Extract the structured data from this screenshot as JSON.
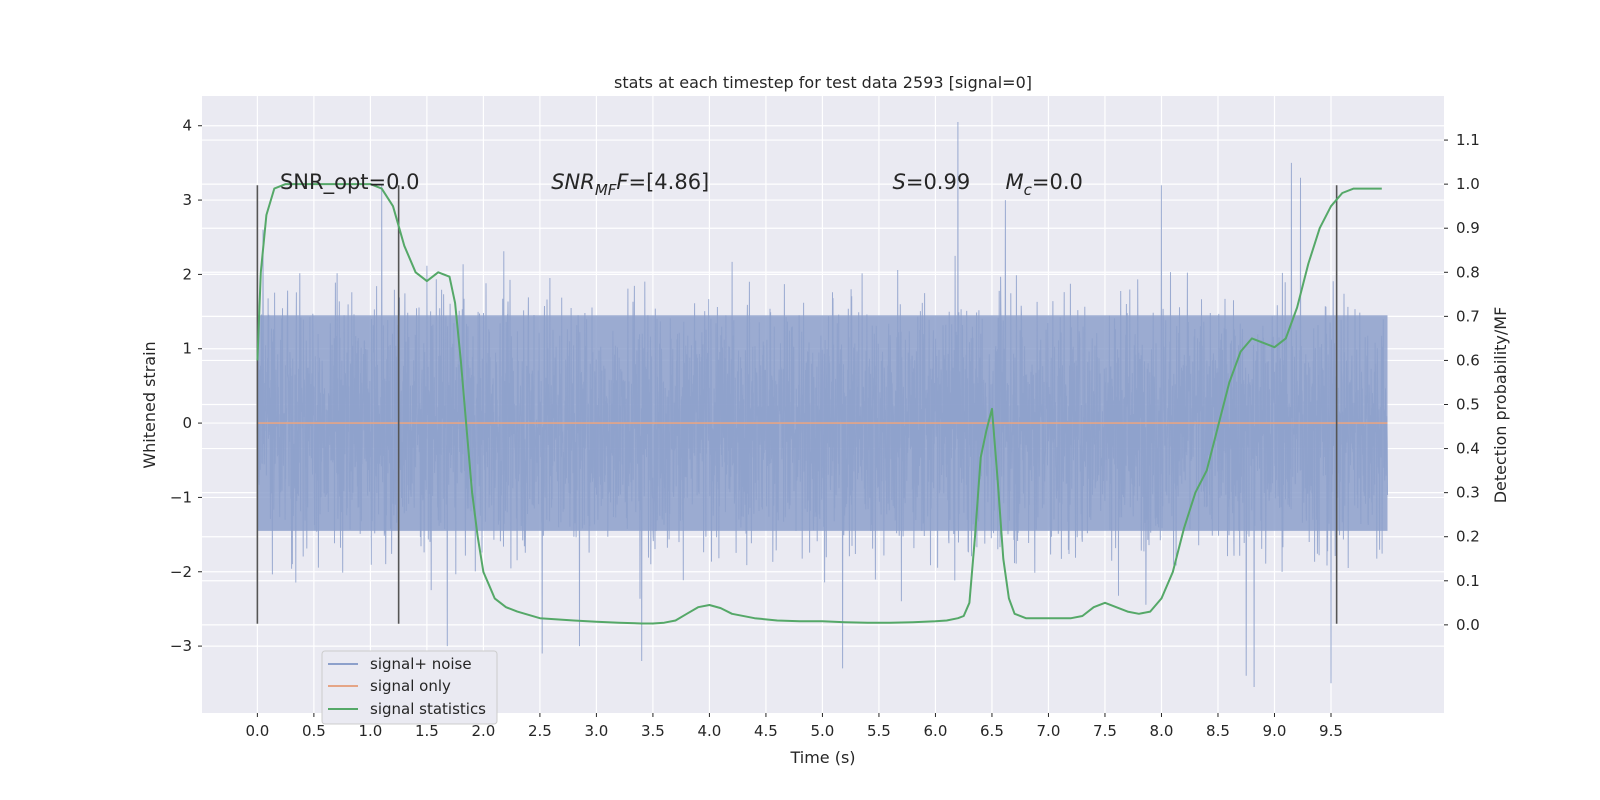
{
  "chart_data": {
    "type": "line",
    "title": "stats at each timestep for test data 2593 [signal=0]",
    "xlabel": "Time (s)",
    "ylabel_left": "Whitened strain",
    "ylabel_right": "Detection probability/MF",
    "xlim": [
      -0.49,
      10.5
    ],
    "ylim_left": [
      -3.9,
      4.4
    ],
    "ylim_right": [
      -0.2,
      1.2
    ],
    "x_ticks": [
      0.0,
      0.5,
      1.0,
      1.5,
      2.0,
      2.5,
      3.0,
      3.5,
      4.0,
      4.5,
      5.0,
      5.5,
      6.0,
      6.5,
      7.0,
      7.5,
      8.0,
      8.5,
      9.0,
      9.5
    ],
    "x_tick_labels": [
      "0.0",
      "0.5",
      "1.0",
      "1.5",
      "2.0",
      "2.5",
      "3.0",
      "3.5",
      "4.0",
      "4.5",
      "5.0",
      "5.5",
      "6.0",
      "6.5",
      "7.0",
      "7.5",
      "8.0",
      "8.5",
      "9.0",
      "9.5"
    ],
    "y_left_ticks": [
      -3,
      -2,
      -1,
      0,
      1,
      2,
      3,
      4
    ],
    "y_left_tick_labels": [
      "−3",
      "−2",
      "−1",
      "0",
      "1",
      "2",
      "3",
      "4"
    ],
    "y_right_ticks": [
      0.0,
      0.1,
      0.2,
      0.3,
      0.4,
      0.5,
      0.6,
      0.7,
      0.8,
      0.9,
      1.0,
      1.1
    ],
    "y_right_tick_labels": [
      "0.0",
      "0.1",
      "0.2",
      "0.3",
      "0.4",
      "0.5",
      "0.6",
      "0.7",
      "0.8",
      "0.9",
      "1.0",
      "1.1"
    ],
    "grid": true,
    "legend_position": "lower-left",
    "series": [
      {
        "name": "signal+ noise",
        "axis": "left",
        "color": "#8da0cb",
        "kind": "noise",
        "x_range": [
          0.0,
          10.0
        ],
        "core_band": [
          -1.45,
          1.45
        ],
        "peaks": [
          [
            0.05,
            2.6
          ],
          [
            1.1,
            3.2
          ],
          [
            1.68,
            -3.0
          ],
          [
            2.52,
            -3.1
          ],
          [
            2.85,
            -3.0
          ],
          [
            3.4,
            -3.2
          ],
          [
            5.18,
            -3.3
          ],
          [
            6.2,
            4.05
          ],
          [
            6.62,
            3.0
          ],
          [
            8.0,
            3.2
          ],
          [
            8.75,
            -3.4
          ],
          [
            8.82,
            -3.55
          ],
          [
            9.15,
            3.5
          ],
          [
            9.23,
            3.3
          ],
          [
            9.5,
            -3.5
          ]
        ]
      },
      {
        "name": "signal only",
        "axis": "left",
        "color": "#e5a586",
        "x": [
          0.0,
          10.0
        ],
        "y": [
          0.0,
          0.0
        ]
      },
      {
        "name": "signal statistics",
        "axis": "right",
        "color": "#55a868",
        "x": [
          0.0,
          0.03,
          0.08,
          0.15,
          0.25,
          0.4,
          0.6,
          0.8,
          1.0,
          1.1,
          1.2,
          1.3,
          1.4,
          1.5,
          1.6,
          1.7,
          1.75,
          1.8,
          1.85,
          1.9,
          1.95,
          2.0,
          2.05,
          2.1,
          2.2,
          2.3,
          2.5,
          2.8,
          3.0,
          3.2,
          3.4,
          3.5,
          3.6,
          3.7,
          3.8,
          3.9,
          4.0,
          4.1,
          4.2,
          4.4,
          4.6,
          4.8,
          5.0,
          5.2,
          5.4,
          5.6,
          5.8,
          6.0,
          6.1,
          6.2,
          6.25,
          6.3,
          6.35,
          6.4,
          6.45,
          6.5,
          6.55,
          6.6,
          6.65,
          6.7,
          6.8,
          6.9,
          7.0,
          7.2,
          7.3,
          7.4,
          7.5,
          7.6,
          7.7,
          7.8,
          7.9,
          8.0,
          8.1,
          8.2,
          8.3,
          8.4,
          8.5,
          8.6,
          8.7,
          8.8,
          8.9,
          9.0,
          9.1,
          9.2,
          9.3,
          9.4,
          9.5,
          9.6,
          9.7,
          9.8,
          9.9,
          9.95
        ],
        "y": [
          0.6,
          0.8,
          0.93,
          0.99,
          1.0,
          1.0,
          1.0,
          1.0,
          1.0,
          0.99,
          0.95,
          0.86,
          0.8,
          0.78,
          0.8,
          0.79,
          0.73,
          0.6,
          0.45,
          0.3,
          0.2,
          0.12,
          0.09,
          0.06,
          0.04,
          0.03,
          0.015,
          0.01,
          0.007,
          0.005,
          0.003,
          0.003,
          0.005,
          0.01,
          0.025,
          0.04,
          0.045,
          0.038,
          0.025,
          0.015,
          0.01,
          0.008,
          0.008,
          0.006,
          0.005,
          0.005,
          0.006,
          0.008,
          0.01,
          0.015,
          0.02,
          0.05,
          0.2,
          0.38,
          0.44,
          0.49,
          0.33,
          0.15,
          0.06,
          0.025,
          0.015,
          0.015,
          0.015,
          0.015,
          0.02,
          0.04,
          0.05,
          0.04,
          0.03,
          0.025,
          0.03,
          0.06,
          0.12,
          0.22,
          0.3,
          0.35,
          0.45,
          0.55,
          0.62,
          0.65,
          0.64,
          0.63,
          0.65,
          0.72,
          0.82,
          0.9,
          0.95,
          0.98,
          0.99,
          0.99,
          0.99,
          0.99
        ]
      }
    ],
    "vertical_markers": [
      0.0,
      1.25,
      9.55
    ],
    "vertical_marker_range": [
      -2.7,
      3.2
    ],
    "annotations": [
      {
        "id": "snr-opt",
        "x": 0.2,
        "y": 3.15,
        "text": "SNR_opt=0.0"
      },
      {
        "id": "snr-mf",
        "x": 2.6,
        "y": 3.15,
        "base": "SNR",
        "sub": "MF",
        "rest": "F=[4.86]"
      },
      {
        "id": "s-stat",
        "x": 5.62,
        "y": 3.15,
        "base": "S",
        "rest": "=0.99"
      },
      {
        "id": "mc",
        "x": 6.62,
        "y": 3.15,
        "base": "M",
        "sub": "c",
        "rest": "=0.0"
      }
    ],
    "legend": [
      {
        "label": "signal+ noise",
        "color": "#8da0cb"
      },
      {
        "label": "signal only",
        "color": "#e5a586"
      },
      {
        "label": "signal statistics",
        "color": "#55a868"
      }
    ]
  }
}
